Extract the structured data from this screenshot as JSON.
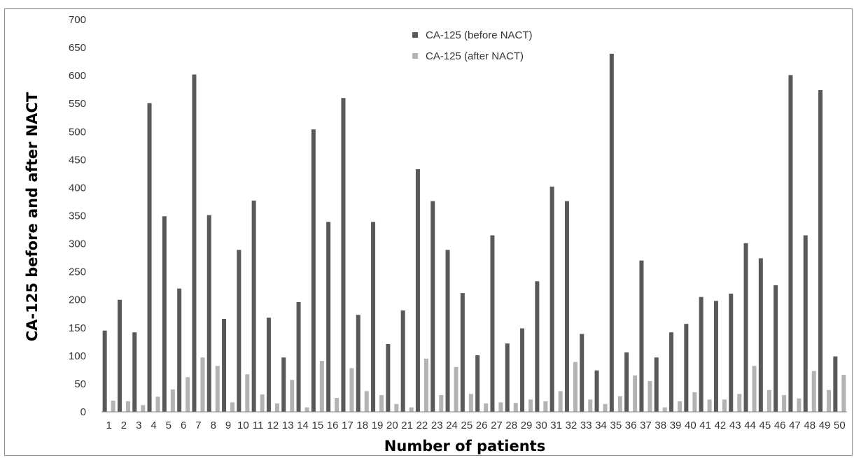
{
  "chart_data": {
    "type": "bar",
    "title": "",
    "xlabel": "Number of patients",
    "ylabel": "CA-125 before and after NACT",
    "ylim": [
      0,
      700
    ],
    "yticks": [
      0,
      50,
      100,
      150,
      200,
      250,
      300,
      350,
      400,
      450,
      500,
      550,
      600,
      650,
      700
    ],
    "grid": false,
    "legend_position": "top-center",
    "categories": [
      "1",
      "2",
      "3",
      "4",
      "5",
      "6",
      "7",
      "8",
      "9",
      "10",
      "11",
      "12",
      "13",
      "14",
      "15",
      "16",
      "17",
      "18",
      "19",
      "20",
      "21",
      "22",
      "23",
      "24",
      "25",
      "26",
      "27",
      "28",
      "29",
      "30",
      "31",
      "32",
      "33",
      "34",
      "35",
      "36",
      "37",
      "38",
      "39",
      "40",
      "41",
      "42",
      "43",
      "44",
      "45",
      "46",
      "47",
      "48",
      "49",
      "50"
    ],
    "series": [
      {
        "name": "CA-125 (before NACT)",
        "color": "#595959",
        "values": [
          145,
          200,
          142,
          551,
          349,
          220,
          602,
          351,
          166,
          289,
          377,
          168,
          97,
          196,
          504,
          339,
          560,
          173,
          339,
          121,
          181,
          433,
          376,
          289,
          212,
          101,
          315,
          122,
          149,
          233,
          402,
          376,
          139,
          74,
          639,
          106,
          270,
          97,
          142,
          157,
          205,
          198,
          211,
          301,
          274,
          226,
          601,
          315,
          574,
          99
        ]
      },
      {
        "name": "CA-125 (after NACT)",
        "color": "#b3b3b3",
        "values": [
          20,
          19,
          12,
          27,
          40,
          62,
          97,
          82,
          17,
          67,
          31,
          15,
          57,
          8,
          91,
          25,
          78,
          37,
          30,
          14,
          8,
          95,
          30,
          80,
          32,
          15,
          17,
          16,
          22,
          19,
          37,
          89,
          22,
          14,
          28,
          65,
          55,
          8,
          19,
          35,
          22,
          22,
          32,
          82,
          39,
          30,
          24,
          73,
          39,
          66
        ]
      }
    ]
  }
}
